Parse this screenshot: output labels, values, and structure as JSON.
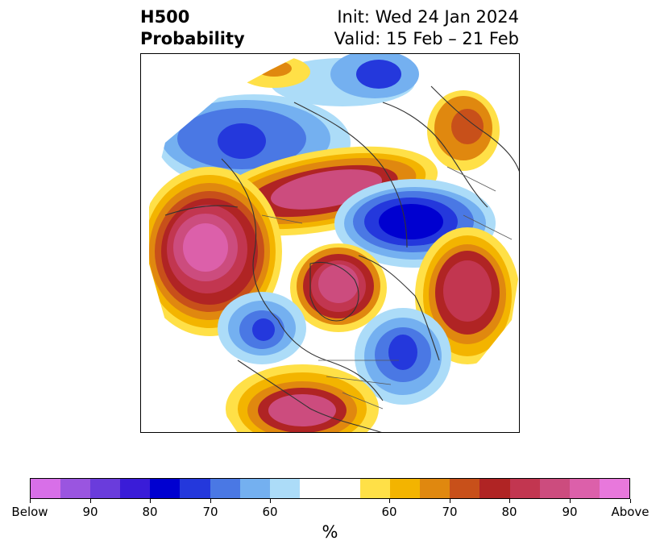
{
  "title": {
    "left_line1": "H500",
    "left_line2": "Probability",
    "right_line1": "Init: Wed 24 Jan 2024",
    "right_line2": "Valid: 15 Feb – 21 Feb"
  },
  "colorbar": {
    "unit_label": "%",
    "tick_labels": [
      "Below",
      "90",
      "80",
      "70",
      "60",
      "60",
      "70",
      "80",
      "90",
      "Above"
    ],
    "colors": [
      "#d86fe8",
      "#9a55e0",
      "#6a3cdc",
      "#3a1cd8",
      "#0000d0",
      "#2438dc",
      "#4a78e4",
      "#74b0f0",
      "#acdcf8",
      "#ffffff",
      "#ffe047",
      "#f3b400",
      "#e0880f",
      "#c8501a",
      "#b02424",
      "#c23650",
      "#cc4c7e",
      "#dc60aa",
      "#e878dc"
    ]
  },
  "map": {
    "projection": "north-polar-stereographic",
    "field": "H500 Probability"
  }
}
